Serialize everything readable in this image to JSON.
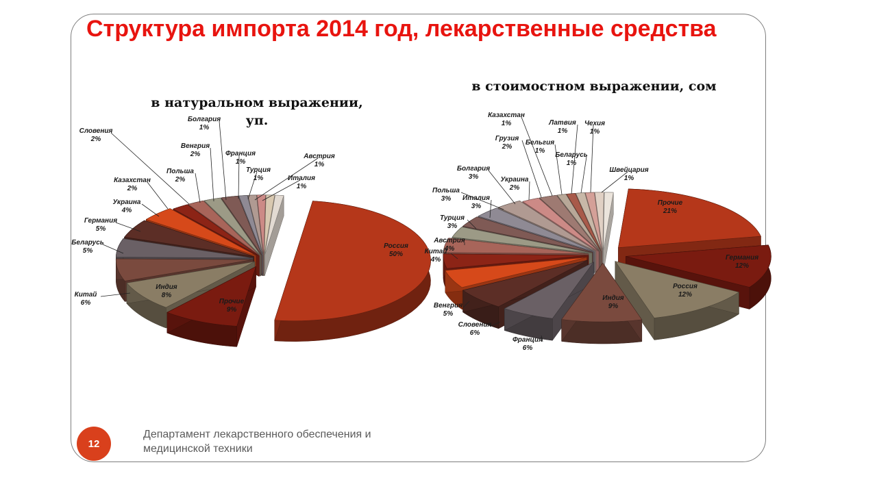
{
  "slide": {
    "title": "Структура импорта 2014 год, лекарственные средства",
    "page_number": "12",
    "footer_line1": "Департамент лекарственного обеспечения и",
    "footer_line2": "медицинской техники"
  },
  "chart_data": [
    {
      "type": "pie",
      "title_line1": "в натуральном выражении,",
      "title_line2": "уп.",
      "slices": [
        {
          "label": "Россия",
          "percent": "50%",
          "value": 50,
          "color": "#b5371a"
        },
        {
          "label": "Прочие",
          "percent": "9%",
          "value": 9,
          "color": "#7a1b10"
        },
        {
          "label": "Индия",
          "percent": "8%",
          "value": 8,
          "color": "#8a7d65"
        },
        {
          "label": "Китай",
          "percent": "6%",
          "value": 6,
          "color": "#7a4a3e"
        },
        {
          "label": "Беларусь",
          "percent": "5%",
          "value": 5,
          "color": "#6a6065"
        },
        {
          "label": "Германия",
          "percent": "5%",
          "value": 5,
          "color": "#5c2e26"
        },
        {
          "label": "Украина",
          "percent": "4%",
          "value": 4,
          "color": "#d6491a"
        },
        {
          "label": "Казахстан",
          "percent": "2%",
          "value": 2,
          "color": "#8c2416"
        },
        {
          "label": "Словения",
          "percent": "2%",
          "value": 2,
          "color": "#a8655a"
        },
        {
          "label": "Польша",
          "percent": "2%",
          "value": 2,
          "color": "#9c9a86"
        },
        {
          "label": "Венгрия",
          "percent": "2%",
          "value": 2,
          "color": "#7f5a55"
        },
        {
          "label": "Болгария",
          "percent": "1%",
          "value": 1,
          "color": "#8f8a94"
        },
        {
          "label": "Франция",
          "percent": "1%",
          "value": 1,
          "color": "#b09a92"
        },
        {
          "label": "Турция",
          "percent": "1%",
          "value": 1,
          "color": "#cc8a86"
        },
        {
          "label": "Австрия",
          "percent": "1%",
          "value": 1,
          "color": "#d8c8b0"
        },
        {
          "label": "Италия",
          "percent": "1%",
          "value": 1,
          "color": "#e2dad2"
        }
      ]
    },
    {
      "type": "pie",
      "title_line1": "в стоимостном выражении, сом",
      "title_line2": "",
      "slices": [
        {
          "label": "Прочие",
          "percent": "21%",
          "value": 21,
          "color": "#b5371a"
        },
        {
          "label": "Германия",
          "percent": "12%",
          "value": 12,
          "color": "#7a1b10"
        },
        {
          "label": "Россия",
          "percent": "12%",
          "value": 12,
          "color": "#8a7d65"
        },
        {
          "label": "Индия",
          "percent": "9%",
          "value": 9,
          "color": "#7a4a3e"
        },
        {
          "label": "Франция",
          "percent": "6%",
          "value": 6,
          "color": "#6a6065"
        },
        {
          "label": "Словения",
          "percent": "6%",
          "value": 6,
          "color": "#5c2e26"
        },
        {
          "label": "Венгрия",
          "percent": "5%",
          "value": 5,
          "color": "#d6491a"
        },
        {
          "label": "Китай",
          "percent": "4%",
          "value": 4,
          "color": "#8c2416"
        },
        {
          "label": "Австрия",
          "percent": "4%",
          "value": 4,
          "color": "#a8655a"
        },
        {
          "label": "Турция",
          "percent": "3%",
          "value": 3,
          "color": "#9c9a86"
        },
        {
          "label": "Италия",
          "percent": "3%",
          "value": 3,
          "color": "#7f5a55"
        },
        {
          "label": "Польша",
          "percent": "3%",
          "value": 3,
          "color": "#8f8a94"
        },
        {
          "label": "Болгария",
          "percent": "3%",
          "value": 3,
          "color": "#b09a92"
        },
        {
          "label": "Украина",
          "percent": "2%",
          "value": 2,
          "color": "#cc8a86"
        },
        {
          "label": "Грузия",
          "percent": "2%",
          "value": 2,
          "color": "#9e7a72"
        },
        {
          "label": "Казахстан",
          "percent": "1%",
          "value": 1,
          "color": "#b8a898"
        },
        {
          "label": "Бельгия",
          "percent": "1%",
          "value": 1,
          "color": "#a85a4a"
        },
        {
          "label": "Латвия",
          "percent": "1%",
          "value": 1,
          "color": "#c8b8a8"
        },
        {
          "label": "Беларусь",
          "percent": "1%",
          "value": 1,
          "color": "#d4a098"
        },
        {
          "label": "Чехия",
          "percent": "1%",
          "value": 1,
          "color": "#e0d0c4"
        },
        {
          "label": "Швейцария",
          "percent": "1%",
          "value": 1,
          "color": "#ebe4dc"
        }
      ]
    }
  ]
}
